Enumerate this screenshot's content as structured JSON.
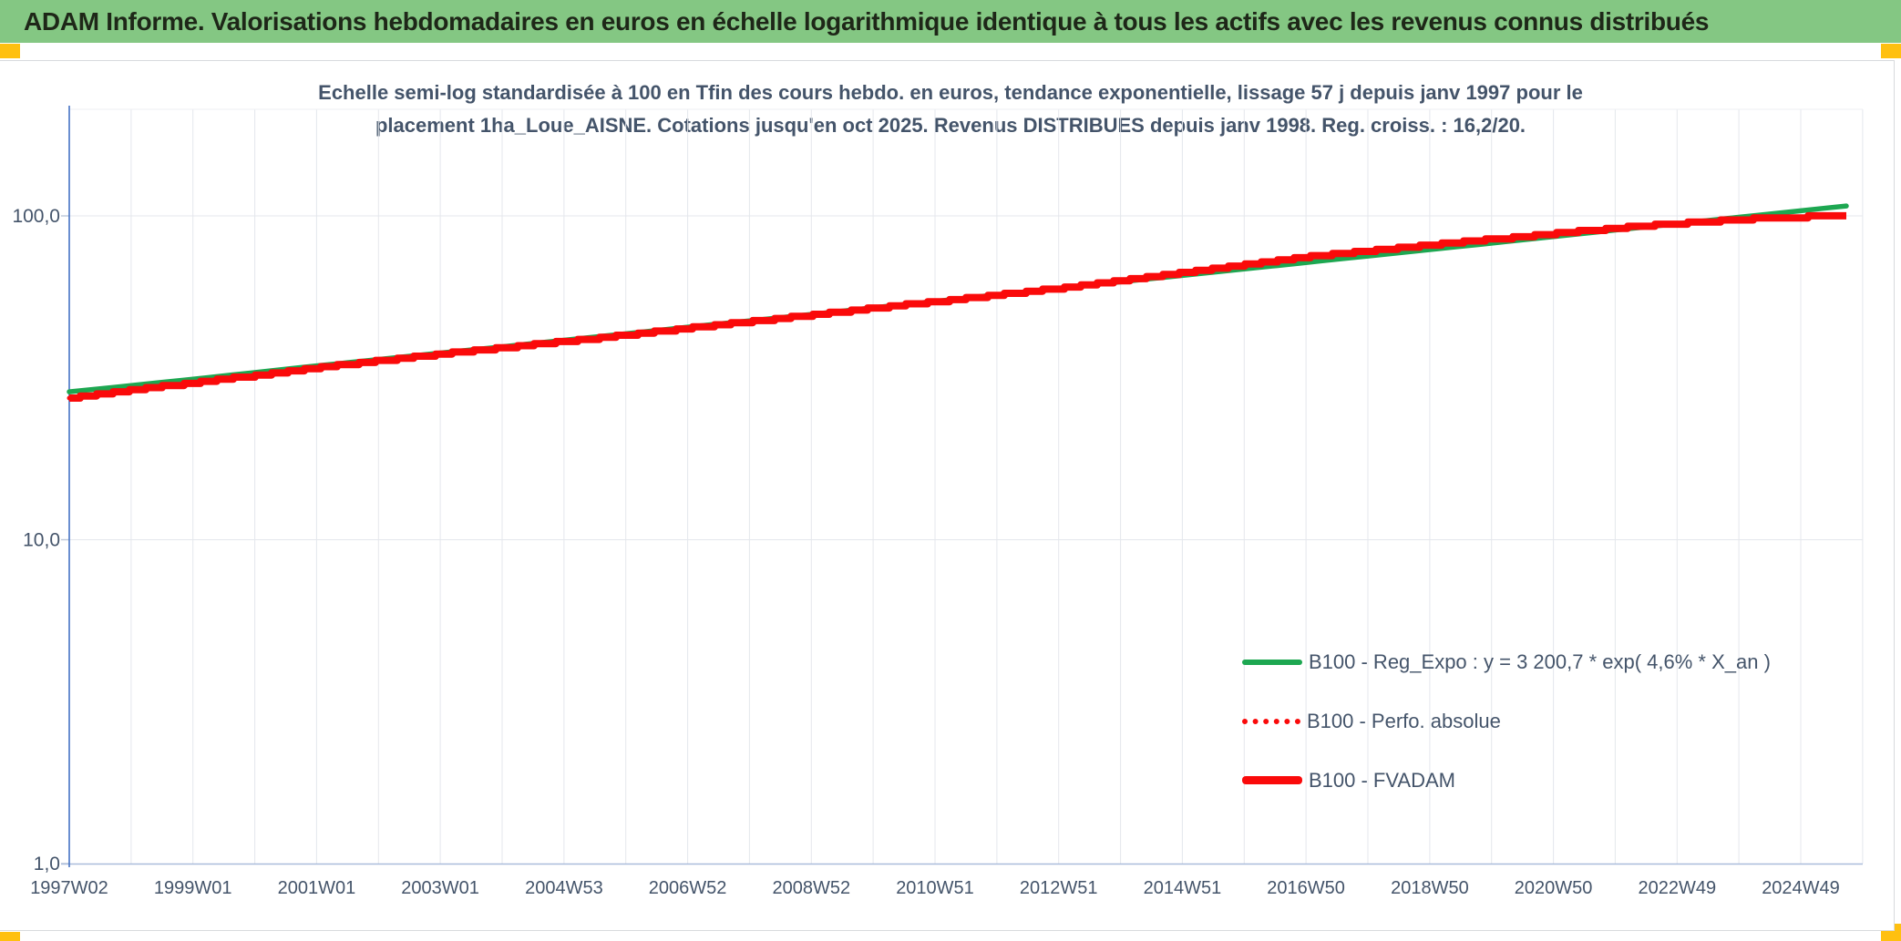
{
  "header": {
    "title": "ADAM Informe. Valorisations hebdomadaires en euros en échelle logarithmique identique à tous les actifs avec les revenus connus distribués"
  },
  "chart": {
    "title_line1": "Echelle semi-log standardisée à 100 en Tfin des cours hebdo. en euros, tendance exponentielle, lissage 57 j depuis janv 1997 pour le",
    "title_line2": "placement 1ha_Loue_AISNE. Cotations jusqu'en oct 2025. Revenus DISTRIBUES depuis janv 1998. Reg. croiss. : 16,2/20.",
    "legend": [
      {
        "label": "B100 - Reg_Expo : y = 3 200,7 * exp( 4,6% *  X_an )",
        "style": "solid",
        "color": "#1DA751"
      },
      {
        "label": "B100 - Perfo. absolue",
        "style": "dotted",
        "color": "#FA0A0A"
      },
      {
        "label": "B100 - FVADAM",
        "style": "solid-thick",
        "color": "#FA0A0A"
      }
    ]
  },
  "colors": {
    "header_bg": "#84C783",
    "corner_marker": "#FFC010",
    "text_blue_gray": "#44546A",
    "grid": "#E4E7EC",
    "axis_blue": "#4472C4",
    "axis_bottom": "#A9BCDB",
    "series_green": "#1DA751",
    "series_red": "#FA0A0A"
  },
  "chart_data": {
    "type": "line",
    "title": "Echelle semi-log standardisée à 100 en Tfin des cours hebdo. en euros, tendance exponentielle, lissage 57 j depuis janv 1997 pour le placement 1ha_Loue_AISNE. Cotations jusqu'en oct 2025. Revenus DISTRIBUES depuis janv 1998. Reg. croiss. : 16,2/20.",
    "x_axis": {
      "unit": "ISO week (year W week)",
      "tick_labels": [
        "1997W02",
        "1999W01",
        "2001W01",
        "2003W01",
        "2004W53",
        "2006W52",
        "2008W52",
        "2010W51",
        "2012W51",
        "2014W51",
        "2016W50",
        "2018W50",
        "2020W50",
        "2022W49",
        "2024W49"
      ],
      "range_years": [
        1997.02,
        2025.77
      ]
    },
    "y_axis": {
      "scale": "log10",
      "tick_labels": [
        "100,0",
        "10,0",
        "1,0"
      ],
      "tick_values": [
        100,
        10,
        1
      ],
      "range": [
        1,
        200
      ]
    },
    "grid": "vertical yearly lines, horizontal decade lines",
    "legend_position": "inside lower right",
    "series": [
      {
        "name": "B100 - Reg_Expo : y = 3 200,7 * exp( 4,6% *  X_an )",
        "color": "#1DA751",
        "style": "solid",
        "points": [
          [
            1997,
            28.6
          ],
          [
            1998,
            29.9
          ],
          [
            1999,
            31.3
          ],
          [
            2000,
            32.8
          ],
          [
            2001,
            34.4
          ],
          [
            2002,
            36.0
          ],
          [
            2003,
            37.7
          ],
          [
            2004,
            39.4
          ],
          [
            2005,
            41.3
          ],
          [
            2006,
            43.2
          ],
          [
            2007,
            45.3
          ],
          [
            2008,
            47.4
          ],
          [
            2009,
            49.6
          ],
          [
            2010,
            52.0
          ],
          [
            2011,
            54.4
          ],
          [
            2012,
            57.0
          ],
          [
            2013,
            59.7
          ],
          [
            2014,
            62.5
          ],
          [
            2015,
            65.4
          ],
          [
            2016,
            68.5
          ],
          [
            2017,
            71.7
          ],
          [
            2018,
            75.1
          ],
          [
            2019,
            78.6
          ],
          [
            2020,
            82.3
          ],
          [
            2021,
            86.2
          ],
          [
            2022,
            90.3
          ],
          [
            2023,
            94.5
          ],
          [
            2024,
            99.0
          ],
          [
            2025,
            103.6
          ],
          [
            2025.75,
            107.3
          ]
        ]
      },
      {
        "name": "B100 - Perfo. absolue",
        "color": "#FA0A0A",
        "style": "dotted",
        "points": [
          [
            1997,
            27.4
          ],
          [
            1998,
            28.9
          ],
          [
            1999,
            30.5
          ],
          [
            2000,
            32.1
          ],
          [
            2001,
            33.9
          ],
          [
            2002,
            35.6
          ],
          [
            2003,
            37.4
          ],
          [
            2004,
            39.1
          ],
          [
            2005,
            40.9
          ],
          [
            2006,
            42.8
          ],
          [
            2007,
            44.9
          ],
          [
            2008,
            47.1
          ],
          [
            2009,
            49.4
          ],
          [
            2010,
            51.8
          ],
          [
            2011,
            54.3
          ],
          [
            2012,
            56.9
          ],
          [
            2013,
            59.7
          ],
          [
            2014,
            63.0
          ],
          [
            2015,
            66.8
          ],
          [
            2016,
            70.6
          ],
          [
            2017,
            74.6
          ],
          [
            2018,
            77.9
          ],
          [
            2019,
            81.3
          ],
          [
            2020,
            84.6
          ],
          [
            2021,
            88.2
          ],
          [
            2022,
            91.5
          ],
          [
            2023,
            94.7
          ],
          [
            2024,
            97.4
          ],
          [
            2025,
            99.2
          ],
          [
            2025.75,
            100.0
          ]
        ]
      },
      {
        "name": "B100 - FVADAM",
        "color": "#FA0A0A",
        "style": "solid-thick",
        "points": [
          [
            1997,
            27.4
          ],
          [
            1998,
            28.9
          ],
          [
            1999,
            30.5
          ],
          [
            2000,
            32.1
          ],
          [
            2001,
            33.9
          ],
          [
            2002,
            35.6
          ],
          [
            2003,
            37.4
          ],
          [
            2004,
            39.1
          ],
          [
            2005,
            40.9
          ],
          [
            2006,
            42.8
          ],
          [
            2007,
            44.9
          ],
          [
            2008,
            47.1
          ],
          [
            2009,
            49.4
          ],
          [
            2010,
            51.8
          ],
          [
            2011,
            54.3
          ],
          [
            2012,
            56.9
          ],
          [
            2013,
            59.7
          ],
          [
            2014,
            63.0
          ],
          [
            2015,
            66.8
          ],
          [
            2016,
            70.6
          ],
          [
            2017,
            74.6
          ],
          [
            2018,
            77.9
          ],
          [
            2019,
            81.3
          ],
          [
            2020,
            84.6
          ],
          [
            2021,
            88.2
          ],
          [
            2022,
            91.5
          ],
          [
            2023,
            94.7
          ],
          [
            2024,
            97.4
          ],
          [
            2025,
            99.2
          ],
          [
            2025.75,
            100.0
          ]
        ]
      }
    ]
  }
}
